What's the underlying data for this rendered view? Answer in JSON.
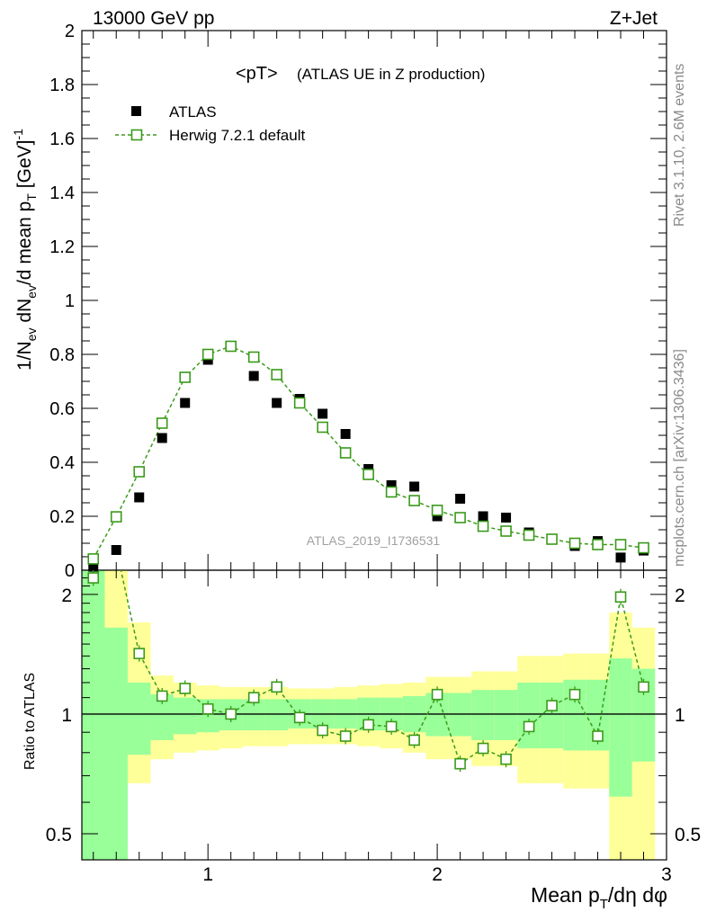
{
  "header": {
    "left": "13000 GeV pp",
    "right": "Z+Jet"
  },
  "side_labels": {
    "rivet": "Rivet 3.1.10,  2.6M events",
    "mcplots": "mcplots.cern.ch [arXiv:1306.3436]"
  },
  "chart_data": [
    {
      "type": "scatter",
      "panel": "main",
      "title": "<pT>",
      "subtitle": "(ATLAS UE in Z production)",
      "analysis_tag": "ATLAS_2019_I1736531",
      "xlabel": "Mean p_T/dη dφ",
      "ylabel": "1/N_ev dN_ev/d mean p_T [GeV]^-1",
      "xlim": [
        0.45,
        3.0
      ],
      "ylim": [
        0,
        2.0
      ],
      "legend_position": "top-left",
      "x_ticks": [
        "1",
        "2",
        "3"
      ],
      "y_ticks": [
        "0",
        "0.2",
        "0.4",
        "0.6",
        "0.8",
        "1",
        "1.2",
        "1.4",
        "1.6",
        "1.8",
        "2"
      ],
      "series": [
        {
          "name": "ATLAS",
          "marker": "filled-square",
          "color": "#000000",
          "x": [
            0.5,
            0.6,
            0.7,
            0.8,
            0.9,
            1.0,
            1.1,
            1.2,
            1.3,
            1.4,
            1.5,
            1.6,
            1.7,
            1.8,
            1.9,
            2.0,
            2.1,
            2.2,
            2.3,
            2.4,
            2.5,
            2.6,
            2.7,
            2.8,
            2.9
          ],
          "values": [
            0.013,
            0.075,
            0.27,
            0.49,
            0.62,
            0.78,
            0.83,
            0.72,
            0.62,
            0.635,
            0.58,
            0.505,
            0.375,
            0.315,
            0.31,
            0.2,
            0.265,
            0.2,
            0.195,
            0.14,
            0.115,
            0.09,
            0.108,
            0.047,
            0.073
          ]
        },
        {
          "name": "Herwig 7.2.1 default",
          "marker": "open-square",
          "line": "dashed",
          "color": "#3a9a1a",
          "x": [
            0.5,
            0.6,
            0.7,
            0.8,
            0.9,
            1.0,
            1.1,
            1.2,
            1.3,
            1.4,
            1.5,
            1.6,
            1.7,
            1.8,
            1.9,
            2.0,
            2.1,
            2.2,
            2.3,
            2.4,
            2.5,
            2.6,
            2.7,
            2.8,
            2.9
          ],
          "values": [
            0.042,
            0.198,
            0.365,
            0.545,
            0.715,
            0.8,
            0.83,
            0.79,
            0.725,
            0.62,
            0.53,
            0.435,
            0.355,
            0.29,
            0.258,
            0.222,
            0.195,
            0.163,
            0.145,
            0.13,
            0.115,
            0.1,
            0.095,
            0.095,
            0.083
          ]
        }
      ]
    },
    {
      "type": "line",
      "panel": "ratio",
      "ylabel": "Ratio to ATLAS",
      "xlim": [
        0.45,
        3.0
      ],
      "ylim": [
        0.43,
        2.3
      ],
      "y_scale": "log",
      "x_ticks": [
        "1",
        "2",
        "3"
      ],
      "y_ticks": [
        "0.5",
        "1",
        "2"
      ],
      "reference_line": 1,
      "bins": [
        0.45,
        0.55,
        0.65,
        0.75,
        0.85,
        0.95,
        1.05,
        1.15,
        1.25,
        1.35,
        1.45,
        1.55,
        1.65,
        1.75,
        1.85,
        1.95,
        2.05,
        2.15,
        2.25,
        2.35,
        2.45,
        2.55,
        2.65,
        2.75,
        2.85,
        2.95
      ],
      "bands": {
        "yellow_color": "#ffff99",
        "green_color": "#99ff99",
        "yellow_low": [
          0.4,
          0.4,
          0.67,
          0.77,
          0.8,
          0.81,
          0.82,
          0.83,
          0.83,
          0.84,
          0.84,
          0.84,
          0.83,
          0.82,
          0.8,
          0.77,
          0.77,
          0.74,
          0.74,
          0.67,
          0.67,
          0.65,
          0.65,
          0.4,
          0.4
        ],
        "yellow_high": [
          2.5,
          2.5,
          1.7,
          1.25,
          1.2,
          1.18,
          1.17,
          1.17,
          1.17,
          1.16,
          1.16,
          1.17,
          1.18,
          1.19,
          1.2,
          1.24,
          1.24,
          1.28,
          1.28,
          1.4,
          1.4,
          1.42,
          1.42,
          1.8,
          1.65
        ],
        "green_low": [
          0.4,
          0.4,
          0.79,
          0.86,
          0.89,
          0.9,
          0.91,
          0.91,
          0.91,
          0.92,
          0.92,
          0.92,
          0.91,
          0.91,
          0.9,
          0.88,
          0.88,
          0.86,
          0.86,
          0.82,
          0.82,
          0.81,
          0.81,
          0.62,
          0.76
        ],
        "green_high": [
          2.5,
          1.65,
          1.2,
          1.12,
          1.1,
          1.09,
          1.09,
          1.09,
          1.09,
          1.09,
          1.09,
          1.09,
          1.1,
          1.1,
          1.11,
          1.13,
          1.13,
          1.15,
          1.15,
          1.2,
          1.2,
          1.22,
          1.22,
          1.38,
          1.3
        ]
      },
      "series": [
        {
          "name": "Herwig 7.2.1 default",
          "marker": "open-square",
          "line": "dashed",
          "color": "#3a9a1a",
          "x": [
            0.5,
            0.6,
            0.7,
            0.8,
            0.9,
            1.0,
            1.1,
            1.2,
            1.3,
            1.4,
            1.5,
            1.6,
            1.7,
            1.8,
            1.9,
            2.0,
            2.1,
            2.2,
            2.3,
            2.4,
            2.5,
            2.6,
            2.7,
            2.8,
            2.9
          ],
          "values": [
            2.2,
            2.6,
            1.42,
            1.11,
            1.16,
            1.03,
            1.0,
            1.1,
            1.17,
            0.98,
            0.91,
            0.88,
            0.94,
            0.93,
            0.86,
            1.12,
            0.75,
            0.82,
            0.77,
            0.93,
            1.05,
            1.12,
            0.88,
            1.97,
            1.17
          ]
        }
      ]
    }
  ]
}
